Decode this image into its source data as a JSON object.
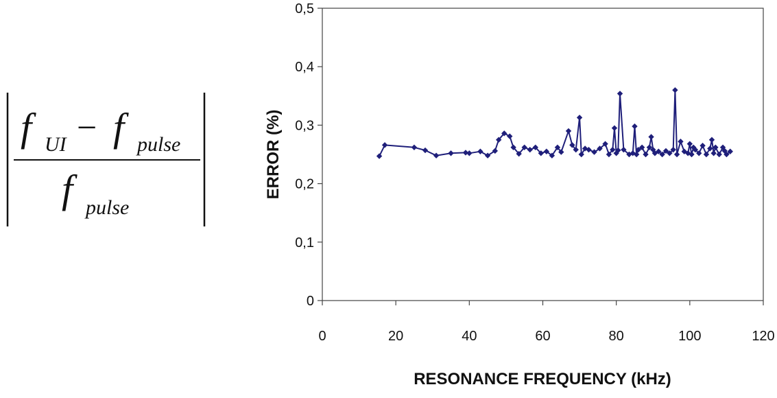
{
  "formula": {
    "f_main": "f",
    "sub_ui": "UI",
    "minus": "−",
    "f_pulse": "f",
    "sub_pulse": "pulse",
    "den_f": "f",
    "den_sub": "pulse"
  },
  "chart_data": {
    "type": "line",
    "title": "",
    "xlabel": "RESONANCE FREQUENCY (kHz)",
    "ylabel": "ERROR (%)",
    "xlim": [
      0,
      120
    ],
    "ylim": [
      0,
      0.5
    ],
    "xticks": [
      0,
      20,
      40,
      60,
      80,
      100,
      120
    ],
    "xtick_labels": [
      "0",
      "20",
      "40",
      "60",
      "80",
      "100",
      "120"
    ],
    "yticks": [
      0,
      0.1,
      0.2,
      0.3,
      0.4,
      0.5
    ],
    "ytick_labels": [
      "0",
      "0,1",
      "0,2",
      "0,3",
      "0,4",
      "0,5"
    ],
    "grid": false,
    "color": "#1f1f7a",
    "marker": "diamond",
    "series": [
      {
        "x": [
          15.5,
          17,
          25,
          28,
          31,
          35,
          39,
          40,
          43,
          45,
          47,
          48,
          49.5,
          51,
          52,
          53.5,
          55,
          56.5,
          58,
          59.5,
          61,
          62.5,
          64,
          65,
          67,
          68,
          69,
          70,
          70.5,
          71.5,
          72.5,
          74,
          75.5,
          77,
          78,
          79,
          79.5,
          80,
          80.5,
          81,
          82,
          83.5,
          84.5,
          85,
          85.5,
          86,
          87,
          88,
          89,
          89.5,
          90,
          90.5,
          91.5,
          92.5,
          93.5,
          94.5,
          95.5,
          96,
          96.5,
          97.5,
          98.5,
          99.5,
          100,
          100.5,
          101,
          101.5,
          102.5,
          103.5,
          104.5,
          105.5,
          106,
          106.5,
          107,
          108,
          109,
          109.5,
          110,
          111
        ],
        "y": [
          0.247,
          0.266,
          0.262,
          0.257,
          0.248,
          0.252,
          0.253,
          0.252,
          0.255,
          0.248,
          0.256,
          0.275,
          0.286,
          0.281,
          0.262,
          0.251,
          0.262,
          0.258,
          0.262,
          0.252,
          0.255,
          0.248,
          0.262,
          0.254,
          0.29,
          0.266,
          0.258,
          0.313,
          0.25,
          0.26,
          0.258,
          0.254,
          0.26,
          0.268,
          0.25,
          0.258,
          0.295,
          0.252,
          0.257,
          0.354,
          0.258,
          0.25,
          0.252,
          0.298,
          0.25,
          0.258,
          0.262,
          0.25,
          0.262,
          0.28,
          0.258,
          0.252,
          0.255,
          0.25,
          0.256,
          0.252,
          0.258,
          0.36,
          0.25,
          0.272,
          0.255,
          0.252,
          0.268,
          0.25,
          0.262,
          0.258,
          0.252,
          0.265,
          0.25,
          0.26,
          0.275,
          0.252,
          0.262,
          0.25,
          0.262,
          0.256,
          0.25,
          0.255
        ]
      }
    ]
  }
}
